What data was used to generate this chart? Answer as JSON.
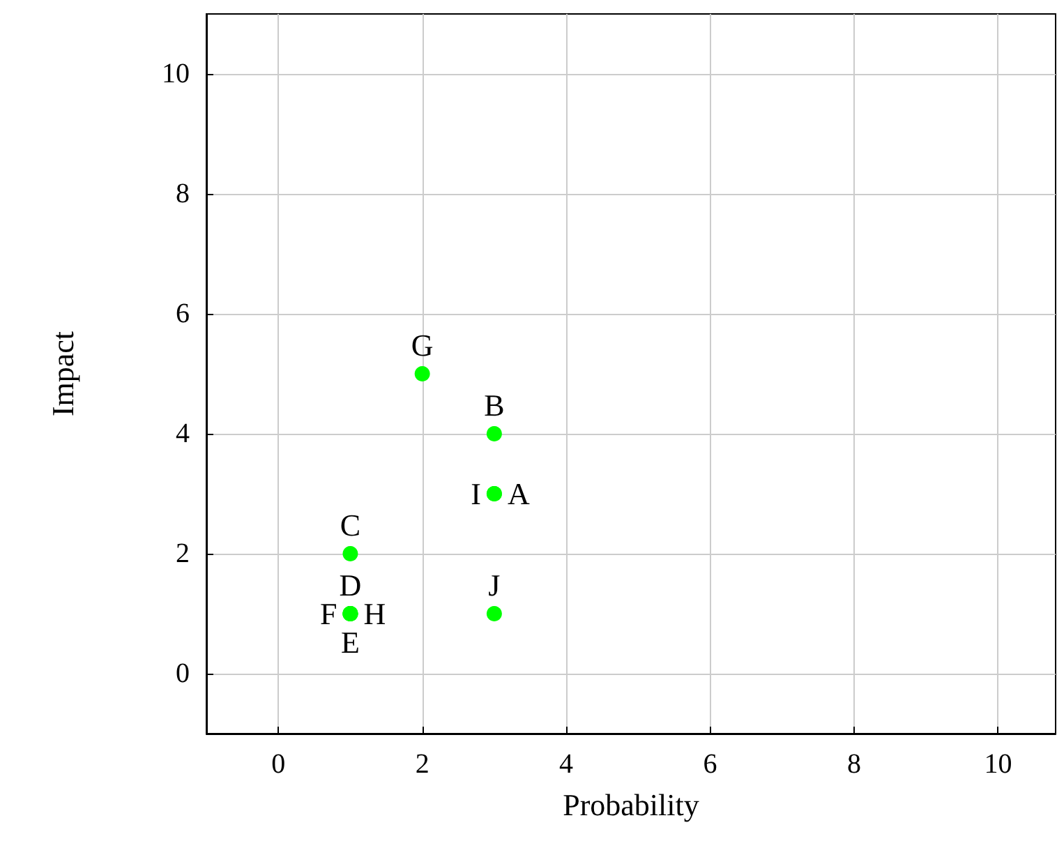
{
  "chart_data": {
    "type": "scatter",
    "xlabel": "Probability",
    "ylabel": "Impact",
    "series": [
      {
        "color": "#00ff00",
        "x": [
          3,
          3,
          1,
          1,
          1,
          1,
          2,
          1,
          3,
          3
        ],
        "values": [
          3,
          4,
          2,
          1,
          1,
          1,
          5,
          1,
          3,
          1
        ],
        "value_labels": [
          "A",
          "B",
          "C",
          "D",
          "E",
          "F",
          "G",
          "H",
          "I",
          "J"
        ]
      }
    ],
    "xlim": [
      -1,
      10.8
    ],
    "ylim": [
      -1,
      11
    ],
    "xticks": [
      0,
      2,
      4,
      6,
      8,
      10
    ],
    "yticks": [
      0,
      2,
      4,
      6,
      8,
      10
    ],
    "grid": true,
    "marker": "circle"
  }
}
